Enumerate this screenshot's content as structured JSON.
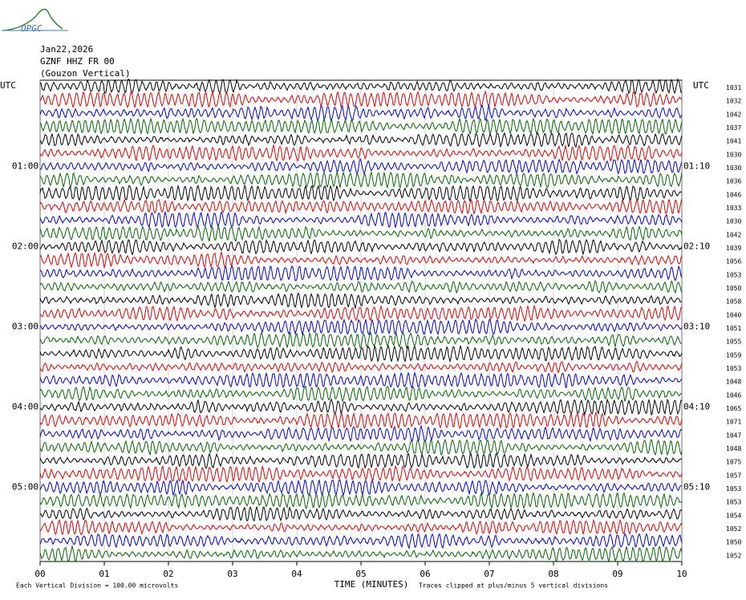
{
  "logo": "OPGC",
  "header": {
    "date": "Jan22,2026",
    "station": "GZNF HHZ FR 00",
    "location": "(Gouzon Vertical)"
  },
  "utc_left": "UTC",
  "utc_right": "UTC",
  "left_times": [
    "01:00",
    "02:00",
    "03:00",
    "04:00",
    "05:00"
  ],
  "right_times": [
    "01:10",
    "02:10",
    "03:10",
    "04:10",
    "05:10"
  ],
  "row_values": [
    1031,
    1032,
    1042,
    1037,
    1041,
    1030,
    1030,
    1036,
    1046,
    1033,
    1030,
    1042,
    1039,
    1056,
    1053,
    1050,
    1058,
    1040,
    1051,
    1055,
    1059,
    1053,
    1048,
    1046,
    1065,
    1071,
    1047,
    1048,
    1075,
    1057,
    1053,
    1053,
    1054,
    1052,
    1050,
    1052
  ],
  "x_ticks": [
    "00",
    "01",
    "02",
    "03",
    "04",
    "05",
    "06",
    "07",
    "08",
    "09",
    "10"
  ],
  "x_title": "TIME (MINUTES)",
  "footer_left": "Each Vertical Division =  100.00 microvolts",
  "footer_right": "Traces clipped at plus/minus 5 vertical divisions"
}
